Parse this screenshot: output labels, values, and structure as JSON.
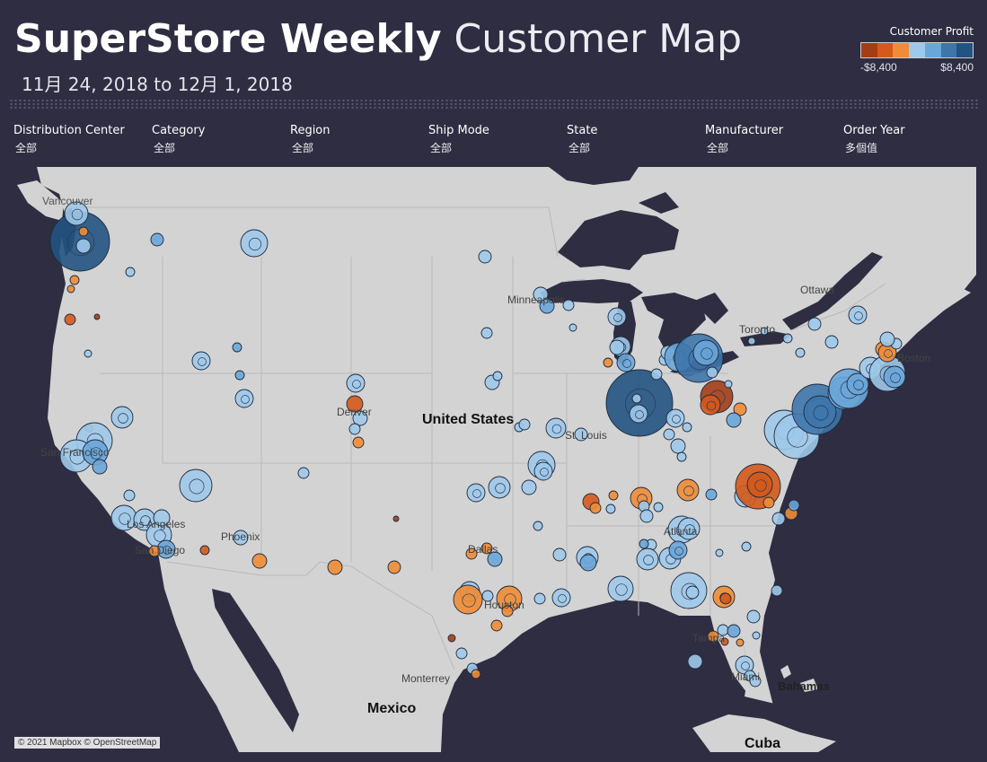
{
  "header": {
    "title_bold": "SuperStore Weekly",
    "title_light": "Customer Map",
    "date_range": "11月 24, 2018 to 12月 1, 2018"
  },
  "legend": {
    "title": "Customer Profit",
    "min_label": "-$8,400",
    "max_label": "$8,400",
    "colors": [
      "#a33d16",
      "#d4591b",
      "#f08c35",
      "#9ec9ea",
      "#6aa6d9",
      "#3e75ab",
      "#225382"
    ]
  },
  "filters": [
    {
      "label": "Distribution Center",
      "value": "全部"
    },
    {
      "label": "Category",
      "value": "全部"
    },
    {
      "label": "Region",
      "value": "全部"
    },
    {
      "label": "Ship Mode",
      "value": "全部"
    },
    {
      "label": "State",
      "value": "全部"
    },
    {
      "label": "Manufacturer",
      "value": "全部"
    },
    {
      "label": "Order Year",
      "value": "多個值"
    }
  ],
  "map": {
    "attribution": "© 2021 Mapbox © OpenStreetMap",
    "country_labels": [
      {
        "name": "United States",
        "bold": true
      },
      {
        "name": "Mexico",
        "bold": true
      },
      {
        "name": "Cuba",
        "bold": true
      },
      {
        "name": "Bahamas",
        "bold": false
      }
    ],
    "city_labels": [
      "Vancouver",
      "Ottawa",
      "Toronto",
      "Minneapolis",
      "Denver",
      "St. Louis",
      "San Francisco",
      "Los Angeles",
      "San Diego",
      "Phoenix",
      "Dallas",
      "Houston",
      "Atlanta",
      "Tampa",
      "Miami",
      "Monterrey",
      "Boston"
    ]
  },
  "colors": {
    "background": "#2e2d42",
    "land": "#d3d3d3",
    "water": "#2e2d42"
  }
}
